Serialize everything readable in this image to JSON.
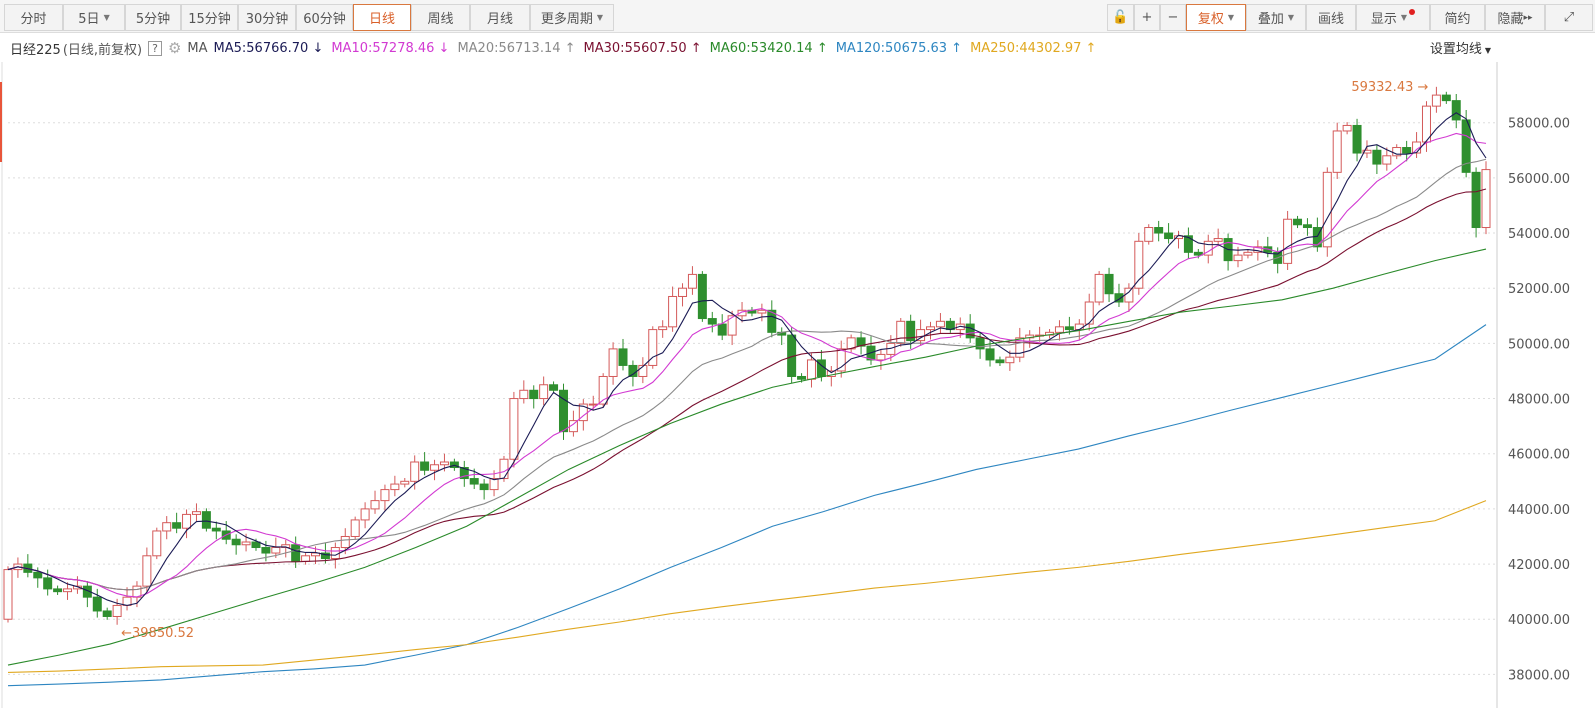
{
  "toolbar": {
    "periods": [
      {
        "label": "分时"
      },
      {
        "label": "5日",
        "dropdown": true
      },
      {
        "label": "5分钟"
      },
      {
        "label": "15分钟"
      },
      {
        "label": "30分钟"
      },
      {
        "label": "60分钟"
      },
      {
        "label": "日线",
        "active": true
      },
      {
        "label": "周线"
      },
      {
        "label": "月线"
      },
      {
        "label": "更多周期",
        "dropdown": true
      }
    ],
    "lock_icon": "lock-open-icon",
    "zoom_in": "+",
    "zoom_out": "−",
    "right": [
      {
        "label": "复权",
        "dropdown": true,
        "active": true
      },
      {
        "label": "叠加",
        "dropdown": true
      },
      {
        "label": "画线"
      },
      {
        "label": "显示",
        "dropdown": true,
        "badge": true
      },
      {
        "label": "简约"
      },
      {
        "label": "隐藏",
        "suffix": "▸▸"
      }
    ],
    "fullscreen_icon": "expand-icon"
  },
  "legend": {
    "title": "日经225",
    "subtitle": "(日线,前复权)",
    "help": "?",
    "ma_label": "MA",
    "items": [
      {
        "text": "MA5:56766.70",
        "arrow": "↓",
        "color": "#1b1b55"
      },
      {
        "text": "MA10:57278.46",
        "arrow": "↓",
        "color": "#d23ad2"
      },
      {
        "text": "MA20:56713.14",
        "arrow": "↑",
        "color": "#8a8a8a"
      },
      {
        "text": "MA30:55607.50",
        "arrow": "↑",
        "color": "#7a1030"
      },
      {
        "text": "MA60:53420.14",
        "arrow": "↑",
        "color": "#2a8a2a"
      },
      {
        "text": "MA120:50675.63",
        "arrow": "↑",
        "color": "#2e86c1"
      },
      {
        "text": "MA250:44302.97",
        "arrow": "↑",
        "color": "#e0a820"
      }
    ],
    "settings": "设置均线"
  },
  "chart_data": {
    "type": "candlestick",
    "title": "日经225",
    "ylim": [
      37000,
      60200
    ],
    "yticks": [
      "58000.00",
      "56000.00",
      "54000.00",
      "52000.00",
      "50000.00",
      "48000.00",
      "46000.00",
      "44000.00",
      "42000.00",
      "40000.00",
      "38000.00"
    ],
    "grid": true,
    "colors": {
      "up": "#d45a5a",
      "down": "#2f8f2f",
      "annotation": "#d9783f"
    },
    "first_open": 40000,
    "closes": [
      41800,
      42000,
      41700,
      41500,
      41100,
      41000,
      41100,
      41200,
      40800,
      40300,
      40100,
      40500,
      40800,
      41200,
      42300,
      43200,
      43500,
      43300,
      43800,
      43900,
      43300,
      43200,
      42900,
      42700,
      42800,
      42600,
      42400,
      42600,
      42700,
      42100,
      42300,
      42400,
      42200,
      42600,
      43000,
      43600,
      44000,
      44300,
      44700,
      44900,
      45000,
      45700,
      45400,
      45600,
      45700,
      45500,
      45100,
      44900,
      44700,
      45100,
      45800,
      48000,
      48300,
      48000,
      48500,
      48300,
      46800,
      47200,
      47800,
      47800,
      48800,
      49800,
      49200,
      48800,
      49200,
      50500,
      50600,
      51700,
      52000,
      52500,
      50900,
      50700,
      50300,
      51000,
      51200,
      51100,
      51200,
      50400,
      50300,
      48800,
      48700,
      49400,
      48800,
      49000,
      49800,
      50200,
      49900,
      49400,
      49600,
      50000,
      50800,
      50100,
      50500,
      50600,
      50800,
      50500,
      50700,
      50200,
      49800,
      49400,
      49300,
      49500,
      50200,
      50300,
      50300,
      50400,
      50600,
      50500,
      50700,
      51500,
      52500,
      51800,
      51500,
      52000,
      53700,
      54200,
      54000,
      53800,
      53900,
      53300,
      53200,
      53700,
      53800,
      53000,
      53200,
      53300,
      53500,
      53300,
      52900,
      54500,
      54300,
      54200,
      53500,
      56200,
      57700,
      57900,
      56900,
      57000,
      56500,
      56800,
      57100,
      56900,
      57300,
      58600,
      59000,
      58800,
      58100,
      56200,
      54200,
      56300
    ],
    "high_annotation": "59332.43",
    "low_annotation": "39850.52",
    "ma_long": {
      "MA60": [
        38340,
        38700,
        39100,
        39640,
        40200,
        40760,
        41300,
        41880,
        42600,
        43370,
        44400,
        45430,
        46300,
        47100,
        47800,
        48410,
        48800,
        49160,
        49500,
        49900,
        50200,
        50460,
        50800,
        51130,
        51350,
        51580,
        52000,
        52510,
        53000,
        53420
      ],
      "MA120": [
        37590,
        37650,
        37720,
        37800,
        37950,
        38100,
        38200,
        38340,
        38700,
        39080,
        39700,
        40390,
        41100,
        41880,
        42600,
        43370,
        43900,
        44490,
        44950,
        45430,
        45800,
        46170,
        46650,
        47100,
        47580,
        48040,
        48500,
        48970,
        49430,
        50680
      ],
      "MA250": [
        38070,
        38120,
        38200,
        38280,
        38310,
        38340,
        38520,
        38700,
        38900,
        39080,
        39350,
        39640,
        39900,
        40200,
        40450,
        40680,
        40900,
        41130,
        41300,
        41500,
        41700,
        41880,
        42100,
        42350,
        42580,
        42810,
        43060,
        43320,
        43570,
        44300
      ]
    }
  }
}
